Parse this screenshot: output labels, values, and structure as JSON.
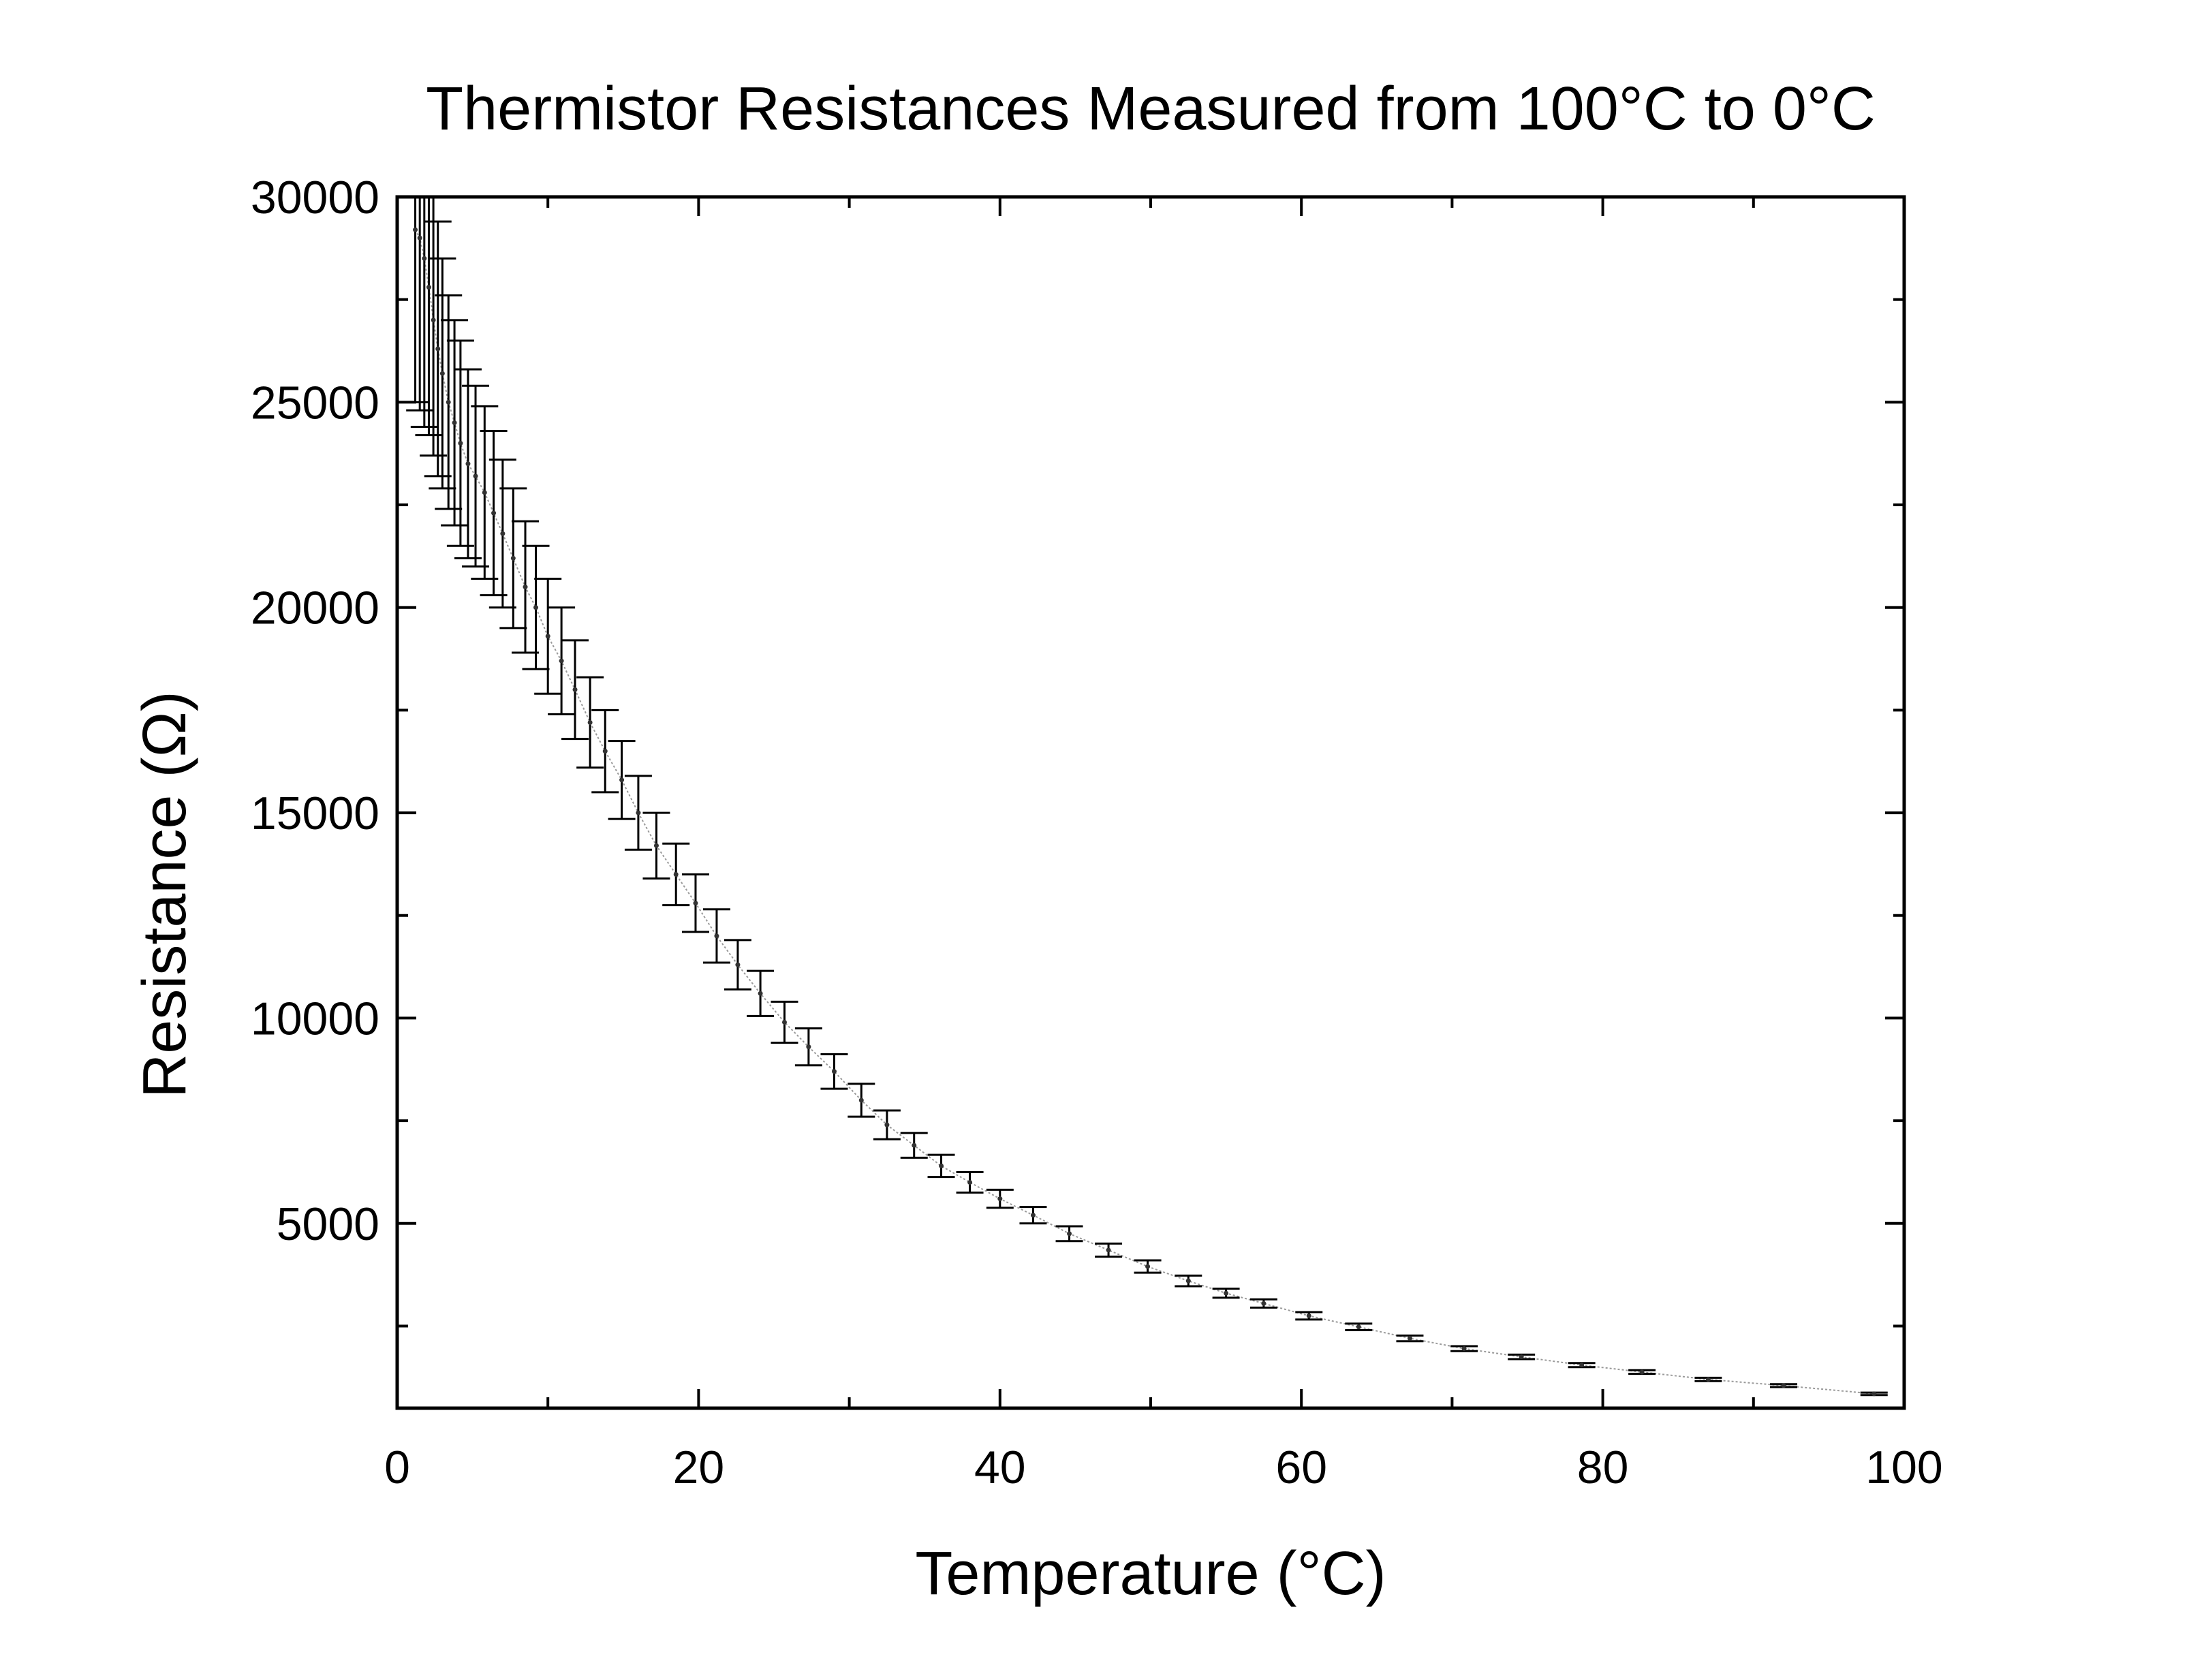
{
  "chart_data": {
    "type": "scatter",
    "title": "Thermistor Resistances Measured from 100°C to 0°C",
    "xlabel": "Temperature (°C)",
    "ylabel": "Resistance (Ω)",
    "xlim": [
      0,
      100
    ],
    "ylim": [
      500,
      30000
    ],
    "x_ticks": [
      0,
      20,
      40,
      60,
      80,
      100
    ],
    "x_tick_labels": [
      "0",
      "20",
      "40",
      "60",
      "80",
      "100"
    ],
    "y_ticks": [
      5000,
      10000,
      15000,
      20000,
      25000,
      30000
    ],
    "y_tick_labels": [
      "5000",
      "10000",
      "15000",
      "20000",
      "25000",
      "30000"
    ],
    "grid": false,
    "legend": "none",
    "series": [
      {
        "x": [
          1.2,
          1.5,
          1.8,
          2.1,
          2.4,
          2.7,
          3.0,
          3.4,
          3.8,
          4.2,
          4.7,
          5.2,
          5.8,
          6.4,
          7.0,
          7.7,
          8.5,
          9.2,
          10.0,
          10.9,
          11.8,
          12.8,
          13.8,
          14.9,
          16.0,
          17.2,
          18.5,
          19.8,
          21.2,
          22.6,
          24.1,
          25.7,
          27.3,
          29.0,
          30.8,
          32.5,
          34.3,
          36.1,
          38.0,
          40.0,
          42.2,
          44.6,
          47.2,
          49.8,
          52.5,
          55.0,
          57.5,
          60.5,
          63.8,
          67.2,
          70.8,
          74.6,
          78.6,
          82.6,
          87.0,
          92.0,
          98.0
        ],
        "y": [
          29200,
          29000,
          28500,
          27800,
          27000,
          26300,
          25700,
          25000,
          24500,
          24000,
          23500,
          23200,
          22800,
          22300,
          21800,
          21200,
          20500,
          20000,
          19300,
          18700,
          18000,
          17200,
          16500,
          15800,
          15000,
          14200,
          13500,
          12800,
          12000,
          11300,
          10600,
          9900,
          9300,
          8700,
          8000,
          7400,
          6900,
          6400,
          6000,
          5600,
          5200,
          4750,
          4350,
          3950,
          3600,
          3300,
          3050,
          2750,
          2480,
          2200,
          1950,
          1750,
          1550,
          1380,
          1200,
          1050,
          850
        ],
        "error": [
          4200,
          4200,
          4100,
          3600,
          3300,
          3100,
          2800,
          2600,
          2500,
          2500,
          2300,
          2200,
          2100,
          2000,
          1800,
          1700,
          1600,
          1500,
          1400,
          1300,
          1200,
          1100,
          1000,
          950,
          900,
          800,
          750,
          700,
          650,
          600,
          550,
          500,
          450,
          420,
          400,
          350,
          300,
          270,
          250,
          220,
          200,
          180,
          160,
          150,
          130,
          110,
          100,
          90,
          80,
          70,
          60,
          55,
          50,
          45,
          40,
          35,
          30
        ]
      }
    ]
  }
}
